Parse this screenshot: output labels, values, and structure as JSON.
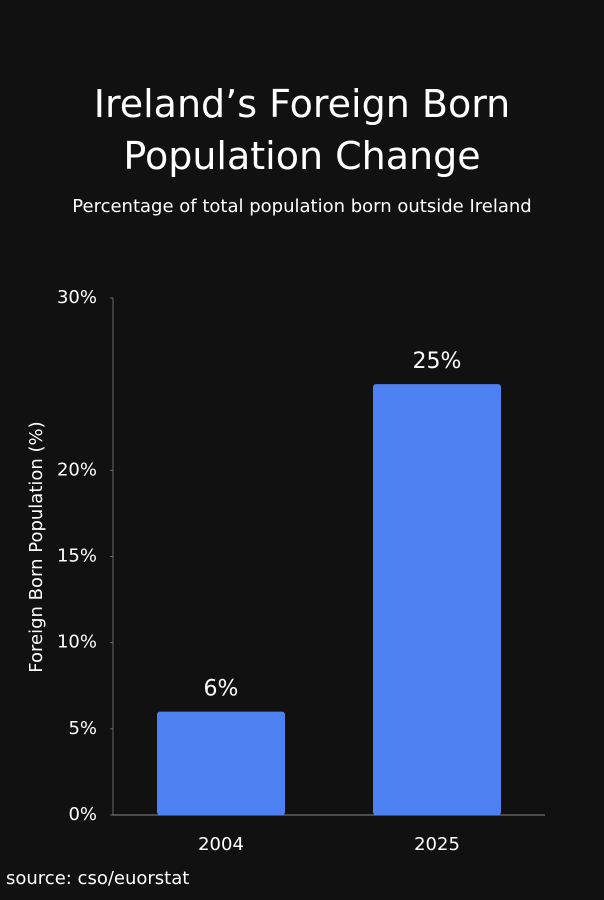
{
  "chart_data": {
    "type": "bar",
    "title": "Ireland’s Foreign Born Population Change",
    "subtitle": "Percentage of total population born outside Ireland",
    "y_label": "Foreign Born Population (%)",
    "source": "source: cso/euorstat",
    "categories": [
      "2004",
      "2025"
    ],
    "values": [
      6,
      25
    ],
    "value_labels": [
      "6%",
      "25%"
    ],
    "color": "#4d80f0",
    "ylim": [
      0,
      30
    ],
    "yticks": [
      {
        "value": 0,
        "label": "0%"
      },
      {
        "value": 5,
        "label": "5%"
      },
      {
        "value": 10,
        "label": "10%"
      },
      {
        "value": 15,
        "label": "15%"
      },
      {
        "value": 20,
        "label": "20%"
      },
      {
        "value": 30,
        "label": "30%"
      }
    ]
  }
}
